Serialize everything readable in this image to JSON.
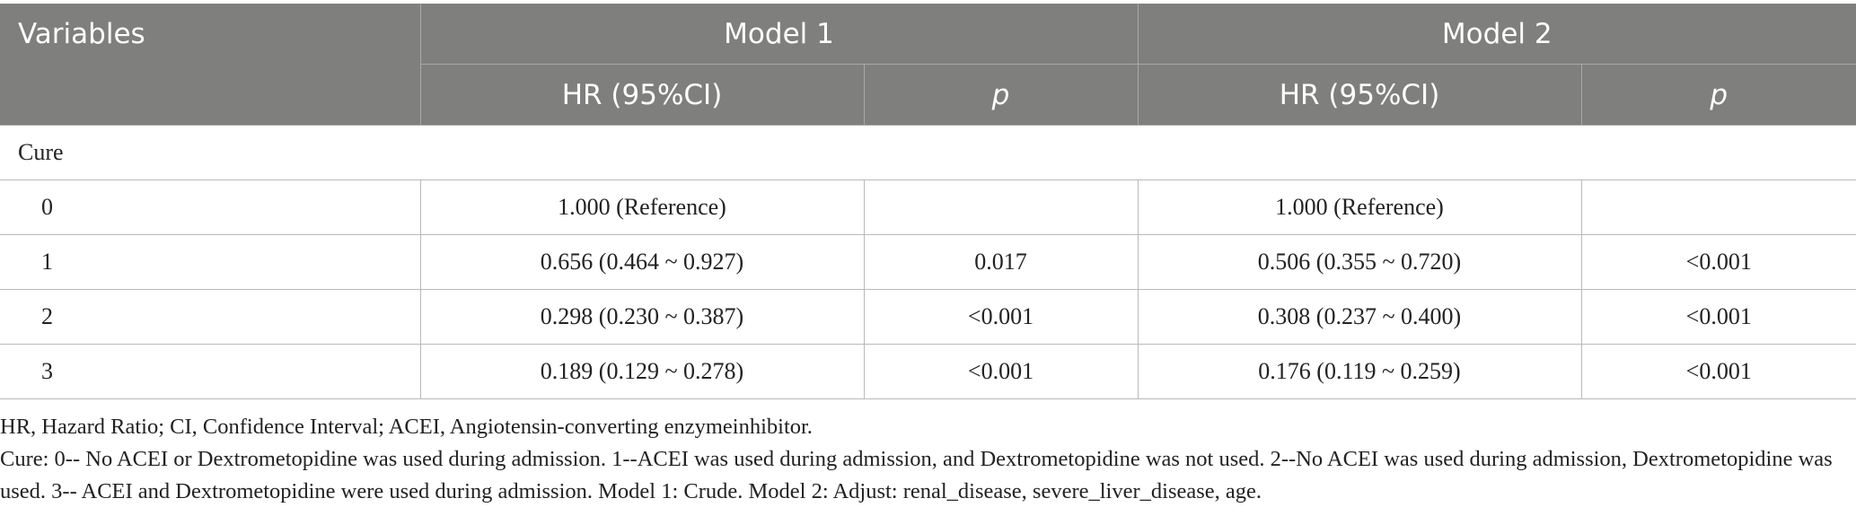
{
  "table": {
    "header": {
      "variables": "Variables",
      "model1": "Model 1",
      "model2": "Model 2",
      "hr_label": "HR (95%CI)",
      "p_label": "p"
    },
    "group_label": "Cure",
    "rows": [
      {
        "level": "0",
        "m1_hr": "1.000 (Reference)",
        "m1_p": "",
        "m2_hr": "1.000 (Reference)",
        "m2_p": ""
      },
      {
        "level": "1",
        "m1_hr": "0.656 (0.464 ~ 0.927)",
        "m1_p": "0.017",
        "m2_hr": "0.506 (0.355 ~ 0.720)",
        "m2_p": "<0.001"
      },
      {
        "level": "2",
        "m1_hr": "0.298 (0.230 ~ 0.387)",
        "m1_p": "<0.001",
        "m2_hr": "0.308 (0.237 ~ 0.400)",
        "m2_p": "<0.001"
      },
      {
        "level": "3",
        "m1_hr": "0.189 (0.129 ~ 0.278)",
        "m1_p": "<0.001",
        "m2_hr": "0.176 (0.119 ~ 0.259)",
        "m2_p": "<0.001"
      }
    ]
  },
  "footnotes": {
    "abbreviations": "HR, Hazard Ratio; CI, Confidence Interval; ACEI, Angiotensin-converting enzymeinhibitor.",
    "definition": "Cure: 0-- No ACEI or Dextrometopidine was used during admission. 1--ACEI was used during admission, and Dextrometopidine was not used. 2--No ACEI was used during admission, Dextrometopidine was used. 3-- ACEI and Dextrometopidine were used during admission. Model 1: Crude. Model 2: Adjust: renal_disease, severe_liver_disease, age."
  },
  "colors": {
    "header_background": "#7f7f7e",
    "header_text": "#ffffff",
    "body_text": "#222222",
    "rule": "#b9b9b9"
  }
}
